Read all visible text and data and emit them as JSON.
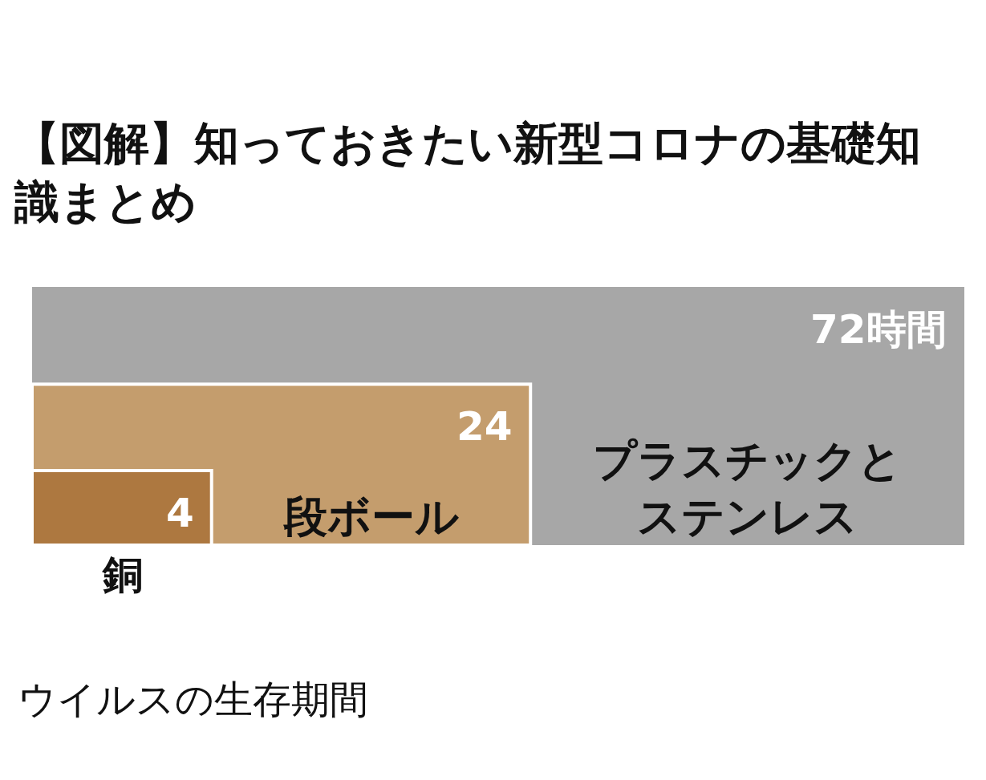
{
  "chart_data": {
    "type": "other",
    "title": "【図解】知っておきたい新型コロナの基礎知識まとめ",
    "categories": [
      "銅",
      "段ボール",
      "プラスチックとステンレス"
    ],
    "values": [
      4,
      24,
      72
    ],
    "value_labels": [
      "4",
      "24",
      "72時間"
    ],
    "colors": [
      "#ad7840",
      "#c49d6d",
      "#a7a7a7"
    ],
    "annotations": [
      "ウイルスの生存期間"
    ]
  }
}
